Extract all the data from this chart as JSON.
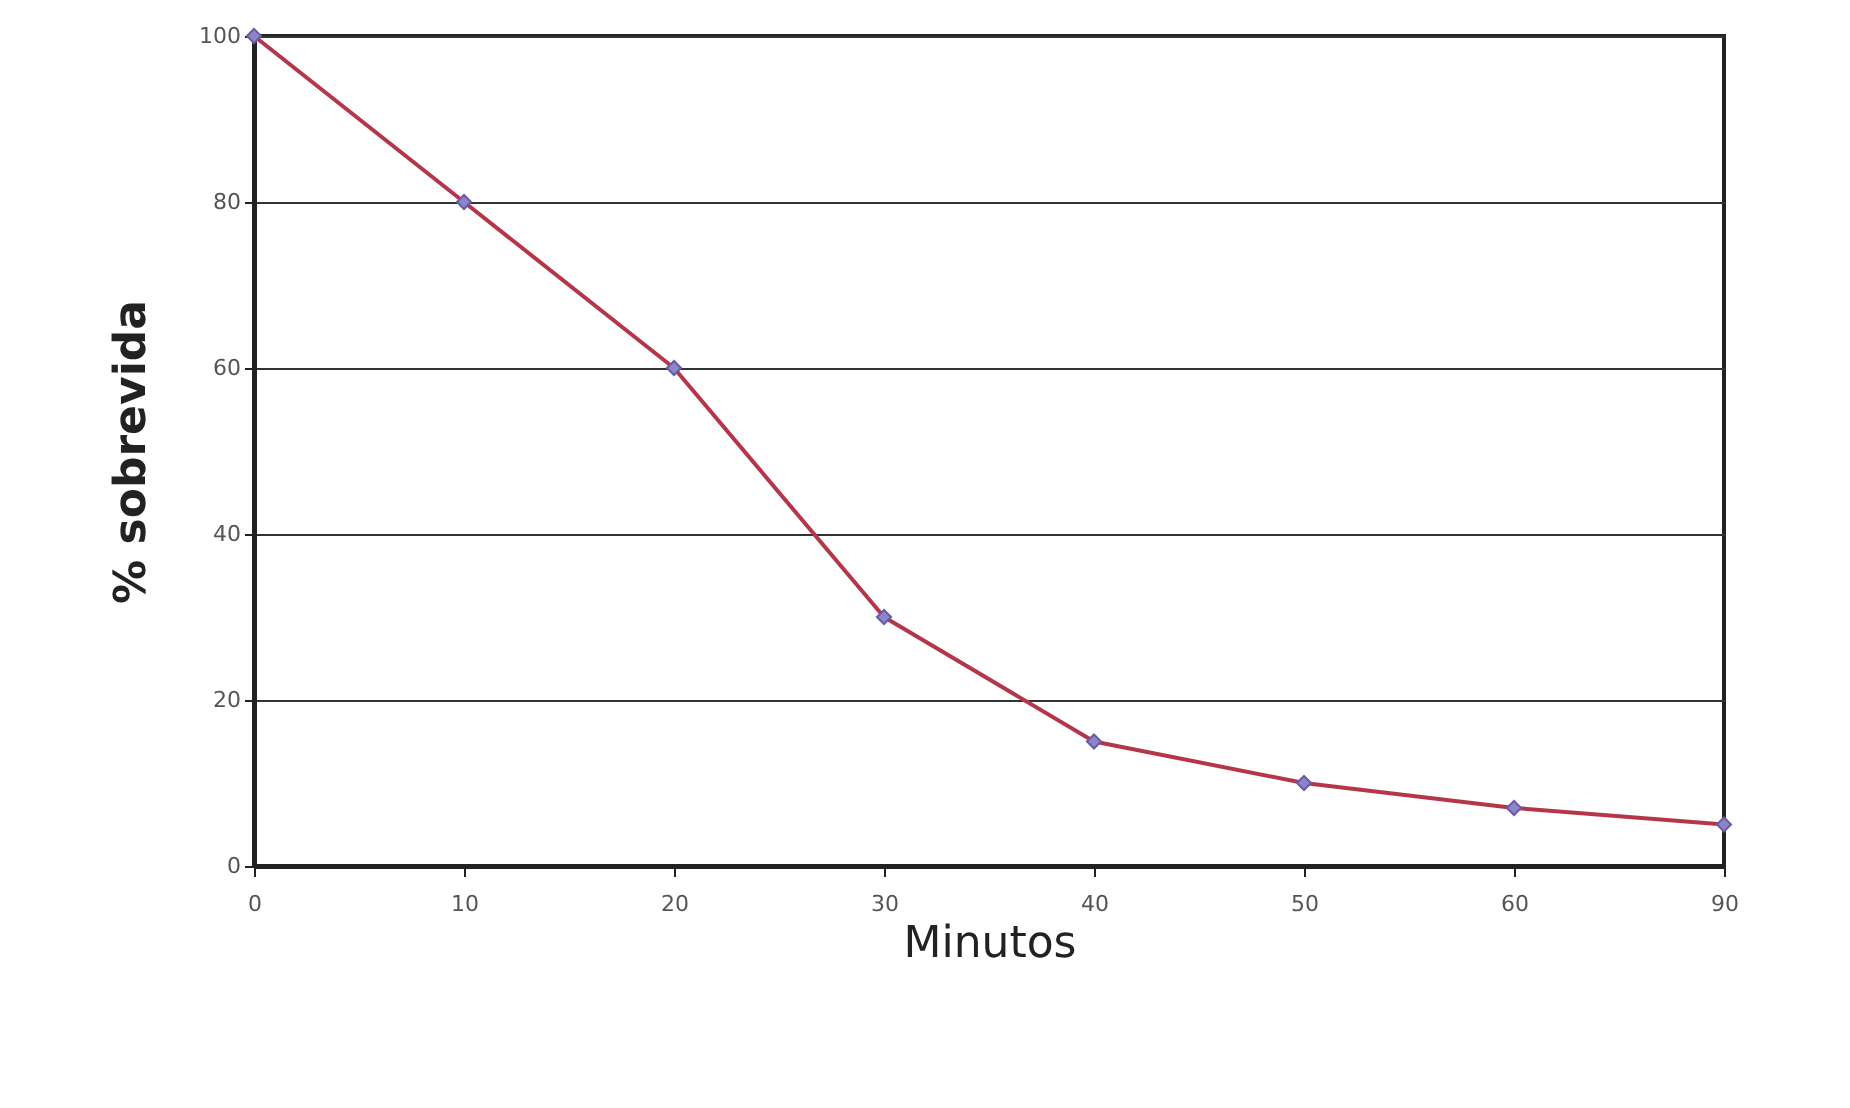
{
  "chart_data": {
    "type": "line",
    "xlabel": "Minutos",
    "ylabel": "% sobrevida",
    "categories": [
      "0",
      "10",
      "20",
      "30",
      "40",
      "50",
      "60",
      "90"
    ],
    "series": [
      {
        "color": "#b5364a",
        "values": [
          100,
          80,
          60,
          30,
          15,
          10,
          7,
          5
        ]
      }
    ],
    "ylim": [
      0,
      100
    ],
    "yticks": [
      0,
      20,
      40,
      60,
      80,
      100
    ],
    "grid": "y",
    "marker": "diamond"
  }
}
